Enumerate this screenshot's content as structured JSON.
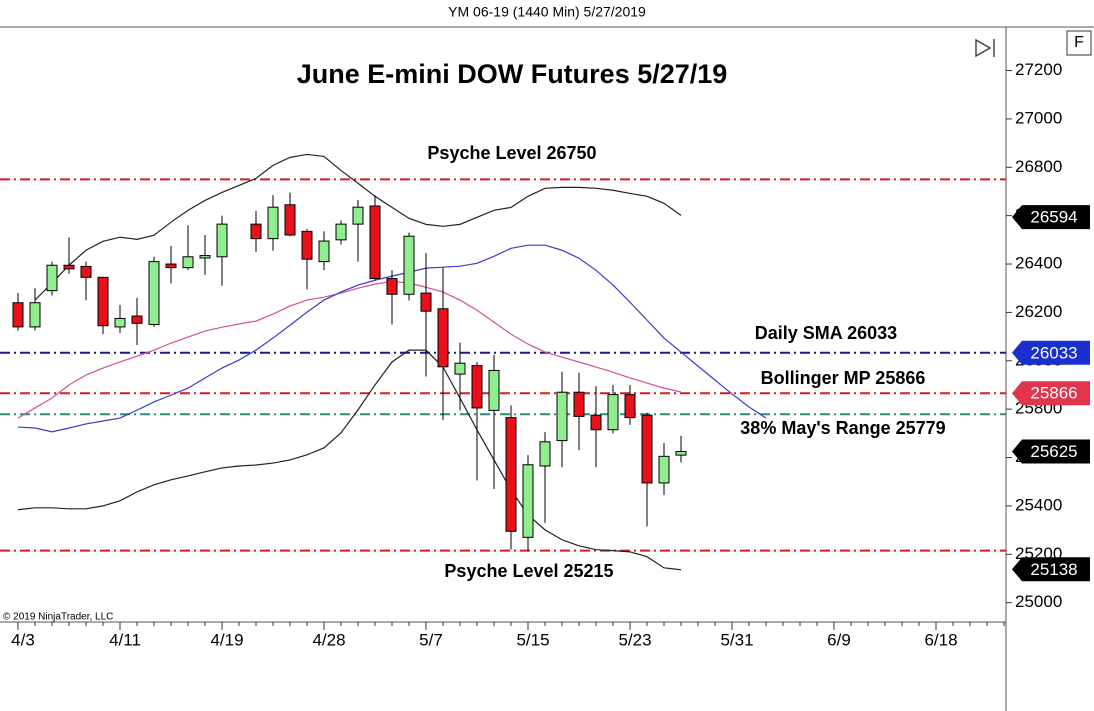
{
  "chart_data": {
    "type": "candlestick",
    "header": "YM 06-19 (1440 Min)  5/27/2019",
    "title": "June E-mini DOW Futures 5/27/19",
    "copyright": "© 2019 NinjaTrader, LLC",
    "corner_label": "F",
    "categories": [
      "4/3",
      null,
      null,
      null,
      null,
      null,
      "4/11",
      null,
      null,
      null,
      null,
      null,
      "4/19",
      null,
      null,
      null,
      null,
      null,
      "4/28",
      null,
      null,
      null,
      null,
      null,
      "5/7",
      null,
      null,
      null,
      null,
      null,
      "5/15",
      null,
      null,
      null,
      null,
      null,
      "5/23",
      null,
      null,
      null,
      null,
      null,
      "5/31",
      null,
      null,
      null,
      null,
      null,
      "6/9",
      null,
      null,
      null,
      null,
      null,
      "6/18",
      null,
      null,
      null,
      null
    ],
    "open": [
      26240,
      26140,
      26290,
      26395,
      26390,
      26345,
      26140,
      26185,
      26150,
      26400,
      26385,
      26425,
      26430,
      null,
      26565,
      26505,
      26645,
      26535,
      26410,
      26500,
      26565,
      26640,
      26340,
      26275,
      26280,
      26215,
      25945,
      25980,
      25795,
      25765,
      25270,
      25565,
      25670,
      25870,
      25775,
      25715,
      25860,
      25775,
      25495,
      25610,
      null,
      null,
      null,
      null,
      null,
      null,
      null,
      null,
      null,
      null,
      null,
      null,
      null,
      null,
      null,
      null,
      null,
      null,
      null
    ],
    "high": [
      26280,
      26300,
      26410,
      26510,
      26410,
      26345,
      26230,
      26260,
      26430,
      26475,
      26560,
      26520,
      26600,
      null,
      26620,
      26685,
      26695,
      26545,
      26535,
      26580,
      26665,
      26685,
      26375,
      26530,
      26445,
      26385,
      26075,
      25995,
      26025,
      25815,
      25610,
      25705,
      25955,
      25950,
      25895,
      25900,
      25900,
      25785,
      25660,
      25690,
      null,
      null,
      null,
      null,
      null,
      null,
      null,
      null,
      null,
      null,
      null,
      null,
      null,
      null,
      null,
      null,
      null,
      null,
      null
    ],
    "low": [
      26125,
      26125,
      26270,
      26360,
      26250,
      26110,
      26115,
      26065,
      26140,
      26320,
      26375,
      26355,
      26310,
      null,
      26450,
      26455,
      26515,
      26295,
      26375,
      26480,
      26410,
      26335,
      26150,
      26250,
      25935,
      25755,
      25795,
      25505,
      25470,
      25220,
      25215,
      25330,
      25560,
      25630,
      25560,
      25700,
      25735,
      25315,
      25445,
      25580,
      null,
      null,
      null,
      null,
      null,
      null,
      null,
      null,
      null,
      null,
      null,
      null,
      null,
      null,
      null,
      null,
      null,
      null,
      null
    ],
    "close": [
      26140,
      26240,
      26395,
      26380,
      26345,
      26145,
      26175,
      26155,
      26410,
      26385,
      26430,
      26435,
      26565,
      null,
      26505,
      26635,
      26520,
      26420,
      26495,
      26565,
      26635,
      26340,
      26275,
      26515,
      26205,
      25975,
      25990,
      25805,
      25960,
      25295,
      25570,
      25665,
      25870,
      25770,
      25715,
      25860,
      25765,
      25495,
      25605,
      25625,
      null,
      null,
      null,
      null,
      null,
      null,
      null,
      null,
      null,
      null,
      null,
      null,
      null,
      null,
      null,
      null,
      null,
      null,
      null
    ],
    "up_color": "#90ee90",
    "down_color": "#e8101a",
    "lines": [
      {
        "color": "#222222",
        "values": [
          null,
          26251,
          26321,
          26395,
          26457,
          26494,
          26511,
          26502,
          26519,
          26573,
          26622,
          26663,
          26696,
          26725,
          26754,
          26808,
          26841,
          26853,
          26845,
          26787,
          26734,
          26680,
          26634,
          26589,
          26564,
          26556,
          26564,
          26593,
          26622,
          26634,
          26680,
          26713,
          26717,
          26717,
          26713,
          26705,
          26692,
          26680,
          26651,
          26601,
          null,
          null,
          null,
          null,
          null,
          null,
          null,
          null,
          null,
          null,
          null,
          null,
          null,
          null,
          null,
          null,
          null,
          null,
          null
        ]
      },
      {
        "color": "#d4509a",
        "values": [
          25763,
          25805,
          25846,
          25900,
          25941,
          25970,
          25995,
          26019,
          26044,
          26073,
          26098,
          26123,
          26139,
          26152,
          26164,
          26193,
          26226,
          26251,
          26263,
          26280,
          26300,
          26317,
          26329,
          26321,
          26304,
          26284,
          26251,
          26209,
          26160,
          26110,
          26069,
          26036,
          26015,
          25995,
          25974,
          25953,
          25929,
          25908,
          25887,
          25871,
          null,
          null,
          null,
          null,
          null,
          null,
          null,
          null,
          null,
          null,
          null,
          null,
          null,
          null,
          null,
          null,
          null,
          null,
          null
        ]
      },
      {
        "color": "#3a3ad0",
        "values": [
          25726,
          25722,
          25706,
          25722,
          25739,
          25751,
          25763,
          25796,
          25830,
          25858,
          25887,
          25929,
          25970,
          26003,
          26044,
          26094,
          26147,
          26201,
          26251,
          26284,
          26313,
          26333,
          26350,
          26366,
          26383,
          26387,
          26391,
          26403,
          26432,
          26465,
          26478,
          26478,
          26457,
          26424,
          26374,
          26313,
          26242,
          26168,
          26094,
          26036,
          25978,
          25920,
          25863,
          25809,
          25763,
          null,
          null,
          null,
          null,
          null,
          null,
          null,
          null,
          null,
          null,
          null,
          null,
          null,
          null
        ]
      },
      {
        "color": "#222222",
        "values": [
          25384,
          25392,
          25392,
          25388,
          25388,
          25400,
          25421,
          25458,
          25487,
          25508,
          25524,
          25541,
          25557,
          25565,
          25569,
          25577,
          25590,
          25611,
          25640,
          25702,
          25797,
          25900,
          25995,
          26044,
          26044,
          25974,
          25846,
          25714,
          25590,
          25466,
          25363,
          25301,
          25260,
          25235,
          25219,
          25215,
          25210,
          25190,
          25144,
          25136,
          null,
          null,
          null,
          null,
          null,
          null,
          null,
          null,
          null,
          null,
          null,
          null,
          null,
          null,
          null,
          null,
          null,
          null,
          null
        ]
      }
    ],
    "levels": [
      {
        "label": "Psyche Level 26750",
        "value": 26750,
        "color": "#d91a1a"
      },
      {
        "label": "Daily SMA 26033",
        "value": 26033,
        "color": "#1a1a8c"
      },
      {
        "label": "Bollinger MP 25866",
        "value": 25866,
        "color": "#d91a1a"
      },
      {
        "label": "38% May's Range 25779",
        "value": 25779,
        "color": "#2e8b7a"
      },
      {
        "label": "Psyche Level 25215",
        "value": 25215,
        "color": "#d91a1a"
      }
    ],
    "price_tags": [
      {
        "value": 26594,
        "color": "#000000"
      },
      {
        "value": 26033,
        "color": "#1a2fd0"
      },
      {
        "value": 25866,
        "color": "#e0354d"
      },
      {
        "value": 25625,
        "color": "#000000"
      },
      {
        "value": 25138,
        "color": "#000000"
      }
    ],
    "ylim": [
      24920,
      27380
    ],
    "yticks": [
      25000,
      25200,
      25400,
      25600,
      25800,
      26000,
      26200,
      26400,
      26600,
      26800,
      27000,
      27200
    ]
  }
}
